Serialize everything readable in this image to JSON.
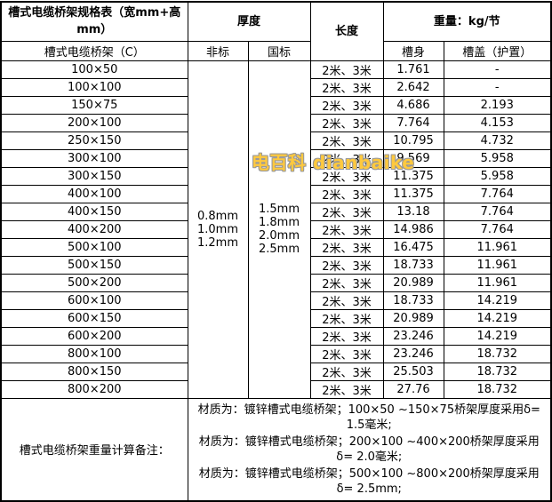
{
  "header": {
    "title": "槽式电缆桥架规格表（宽mm+高mm）",
    "thickness": "厚度",
    "length": "长度",
    "weight": "重量：kg/节",
    "spec_sub": "槽式电缆桥架（C）",
    "nonstandard": "非标",
    "national": "国标",
    "body": "槽身",
    "cover": "槽盖（护置）"
  },
  "thickness_values": {
    "nonstandard": [
      "0.8mm",
      "1.0mm",
      "1.2mm"
    ],
    "national": [
      "1.5mm",
      "1.8mm",
      "2.0mm",
      "2.5mm"
    ]
  },
  "rows": [
    {
      "size": "100×50",
      "length": "2米、3米",
      "body": "1.761",
      "cover": "-"
    },
    {
      "size": "100×100",
      "length": "2米、3米",
      "body": "2.642",
      "cover": "-"
    },
    {
      "size": "150×75",
      "length": "2米、3米",
      "body": "4.686",
      "cover": "2.193"
    },
    {
      "size": "200×100",
      "length": "2米、3米",
      "body": "7.764",
      "cover": "4.153"
    },
    {
      "size": "250×150",
      "length": "2米、3米",
      "body": "10.795",
      "cover": "4.732"
    },
    {
      "size": "300×100",
      "length": "2米、3米",
      "body": "9.569",
      "cover": "5.958"
    },
    {
      "size": "300×150",
      "length": "2米、3米",
      "body": "11.375",
      "cover": "5.958"
    },
    {
      "size": "400×100",
      "length": "2米、3米",
      "body": "11.375",
      "cover": "7.764"
    },
    {
      "size": "400×150",
      "length": "2米、3米",
      "body": "13.18",
      "cover": "7.764"
    },
    {
      "size": "400×200",
      "length": "2米、3米",
      "body": "14.986",
      "cover": "7.764"
    },
    {
      "size": "500×100",
      "length": "2米、3米",
      "body": "16.475",
      "cover": "11.961"
    },
    {
      "size": "500×150",
      "length": "2米、3米",
      "body": "18.733",
      "cover": "11.961"
    },
    {
      "size": "500×200",
      "length": "2米、3米",
      "body": "20.989",
      "cover": "11.961"
    },
    {
      "size": "600×100",
      "length": "2米、3米",
      "body": "18.733",
      "cover": "14.219"
    },
    {
      "size": "600×150",
      "length": "2米、3米",
      "body": "20.989",
      "cover": "14.219"
    },
    {
      "size": "600×200",
      "length": "2米、3米",
      "body": "23.246",
      "cover": "14.219"
    },
    {
      "size": "800×100",
      "length": "2米、3米",
      "body": "23.246",
      "cover": "18.732"
    },
    {
      "size": "800×150",
      "length": "2米、3米",
      "body": "25.503",
      "cover": "18.732"
    },
    {
      "size": "800×200",
      "length": "2米、3米",
      "body": "27.76",
      "cover": "18.732"
    }
  ],
  "footer": {
    "label": "槽式电缆桥架重量计算备注：",
    "notes": [
      "材质为：镀锌槽式电缆桥架；100×50 ~150×75桥架厚度采用δ= 1.5毫米;",
      "材质为：镀锌槽式电缆桥架；200×100 ~400×200桥架厚度采用δ= 2.0毫米;",
      "材质为：镀锌槽式电缆桥架；500×100 ~800×200桥架厚度采用δ= 2.5mm;"
    ]
  },
  "watermark": {
    "text": "电百科 dianbaike",
    "fill_color": "#FFC93E",
    "outline_color": "#999999"
  },
  "colors": {
    "border": "#000000",
    "background": "#FFFFFF",
    "text": "#000000"
  }
}
